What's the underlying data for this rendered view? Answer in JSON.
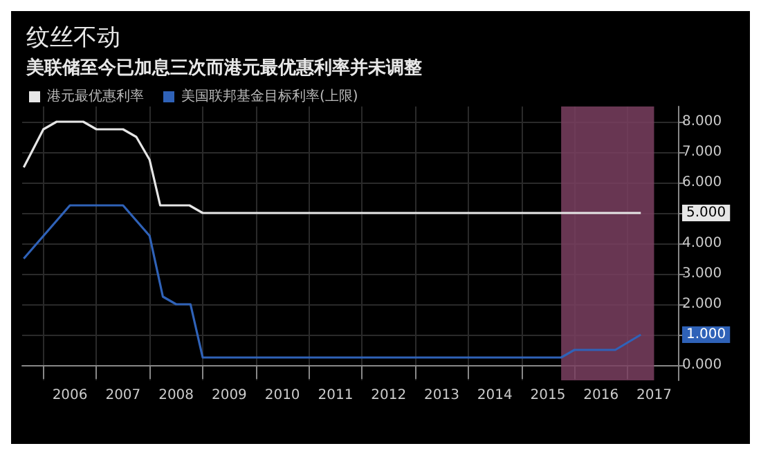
{
  "chart_data": {
    "type": "line",
    "title": "纹丝不动",
    "subtitle": "美联储至今已加息三次而港元最优惠利率并未调整",
    "x": [
      2005.63,
      2006.0,
      2006.25,
      2006.75,
      2007.0,
      2007.5,
      2007.75,
      2008.0,
      2008.2,
      2008.75,
      2009.0,
      2017.25
    ],
    "series": [
      {
        "name": "港元最优惠利率",
        "color": "#e6e6e6",
        "values": [
          6.5,
          7.75,
          8.0,
          8.0,
          7.75,
          7.75,
          7.5,
          6.75,
          5.25,
          5.25,
          5.0,
          5.0
        ]
      },
      {
        "name": "美国联邦基金目标利率(上限)",
        "color": "#2f62b8",
        "x": [
          2005.63,
          2006.5,
          2007.5,
          2008.0,
          2008.25,
          2008.5,
          2008.77,
          2009.0,
          2015.75,
          2016.0,
          2016.77,
          2017.25
        ],
        "values": [
          3.5,
          5.25,
          5.25,
          4.25,
          2.25,
          2.0,
          2.0,
          0.25,
          0.25,
          0.5,
          0.5,
          1.0
        ]
      }
    ],
    "xlim": [
      2005.6,
      2017.95
    ],
    "xticks": [
      {
        "value": 2006,
        "label": null
      },
      {
        "value": 2006.5,
        "label": "2006"
      },
      {
        "value": 2007,
        "label": null
      },
      {
        "value": 2007.5,
        "label": "2007"
      },
      {
        "value": 2008,
        "label": null
      },
      {
        "value": 2008.5,
        "label": "2008"
      },
      {
        "value": 2009,
        "label": null
      },
      {
        "value": 2009.5,
        "label": "2009"
      },
      {
        "value": 2010,
        "label": null
      },
      {
        "value": 2010.5,
        "label": "2010"
      },
      {
        "value": 2011,
        "label": null
      },
      {
        "value": 2011.5,
        "label": "2011"
      },
      {
        "value": 2012,
        "label": null
      },
      {
        "value": 2012.5,
        "label": "2012"
      },
      {
        "value": 2013,
        "label": null
      },
      {
        "value": 2013.5,
        "label": "2013"
      },
      {
        "value": 2014,
        "label": null
      },
      {
        "value": 2014.5,
        "label": "2014"
      },
      {
        "value": 2015,
        "label": null
      },
      {
        "value": 2015.5,
        "label": "2015"
      },
      {
        "value": 2016,
        "label": null
      },
      {
        "value": 2016.5,
        "label": "2016"
      },
      {
        "value": 2017,
        "label": null
      },
      {
        "value": 2017.5,
        "label": "2017"
      }
    ],
    "ylim": [
      -0.5,
      8.5
    ],
    "yticks": [
      {
        "value": 0,
        "label": "0.000"
      },
      {
        "value": 1,
        "label": "1.000"
      },
      {
        "value": 2,
        "label": "2.000"
      },
      {
        "value": 3,
        "label": "3.000"
      },
      {
        "value": 4,
        "label": "4.000"
      },
      {
        "value": 5,
        "label": "5.000"
      },
      {
        "value": 6,
        "label": "6.000"
      },
      {
        "value": 7,
        "label": "7.000"
      },
      {
        "value": 8,
        "label": "8.000"
      }
    ],
    "bands": [
      {
        "axis": "x",
        "from": 2015.75,
        "to": 2017.5,
        "color": "#7a4060"
      }
    ],
    "grid": true,
    "legend": "top left",
    "marker": "none"
  }
}
